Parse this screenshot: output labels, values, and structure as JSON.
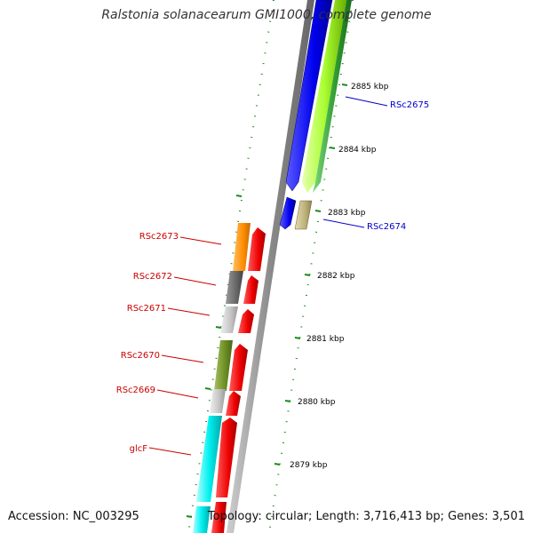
{
  "title": "Ralstonia solanacearum GMI1000, complete genome",
  "accession": "Accession: NC_003295",
  "topology": "Topology: circular; Length: 3,716,413 bp; Genes: 3,501",
  "ticks": [
    {
      "label": "2885 kbp"
    },
    {
      "label": "2884 kbp"
    },
    {
      "label": "2883 kbp"
    },
    {
      "label": "2882 kbp"
    },
    {
      "label": "2881 kbp"
    },
    {
      "label": "2880 kbp"
    },
    {
      "label": "2879 kbp"
    }
  ],
  "genes": {
    "forward": [
      {
        "name": "RSc2675",
        "color": "#0000ff"
      },
      {
        "name": "RSc2674",
        "color": "#0000ff"
      }
    ],
    "reverse": [
      {
        "name": "RSc2673",
        "color": "#cc0000"
      },
      {
        "name": "RSc2672",
        "color": "#cc0000"
      },
      {
        "name": "RSc2671",
        "color": "#cc0000"
      },
      {
        "name": "RSc2670",
        "color": "#cc0000"
      },
      {
        "name": "RSc2669",
        "color": "#cc0000"
      },
      {
        "name": "glcF",
        "color": "#cc0000"
      }
    ]
  },
  "colors": {
    "backbone": "#8c8c8c",
    "cds_forward": "#0000ff",
    "cds_reverse": "#ff0000",
    "tick": "#1a8c1a"
  }
}
